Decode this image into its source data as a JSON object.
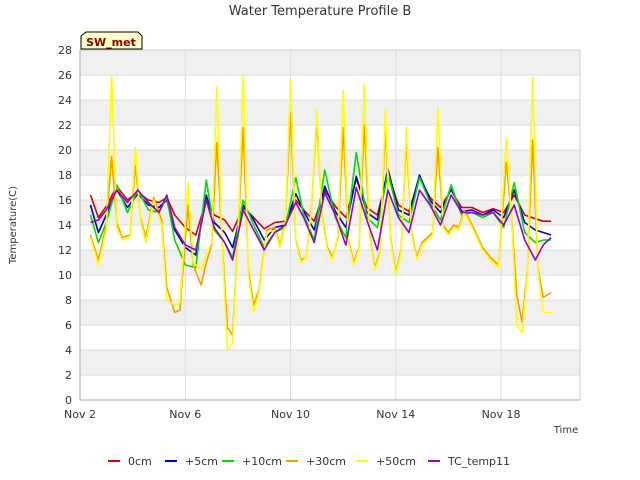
{
  "chart_data": {
    "type": "line",
    "title": "Water Temperature Profile B",
    "xlabel": "Time",
    "ylabel": "Temperature(C)",
    "badge": "SW_met",
    "x_ticks": [
      {
        "day": 2,
        "label": "Nov 2"
      },
      {
        "day": 6,
        "label": "Nov 6"
      },
      {
        "day": 10,
        "label": "Nov 10"
      },
      {
        "day": 14,
        "label": "Nov 14"
      },
      {
        "day": 18,
        "label": "Nov 18"
      }
    ],
    "xlim": [
      2,
      21
    ],
    "ylim": [
      0,
      28
    ],
    "y_ticks": [
      0,
      2,
      4,
      6,
      8,
      10,
      12,
      14,
      16,
      18,
      20,
      22,
      24,
      26,
      28
    ],
    "grid": true,
    "banded_background": true,
    "legend_position": "bottom",
    "series": [
      {
        "name": "0cm",
        "color": "#dd0000",
        "x": [
          2.4,
          2.7,
          3.0,
          3.4,
          3.8,
          4.2,
          4.6,
          5.0,
          5.3,
          5.6,
          6.0,
          6.4,
          6.8,
          7.1,
          7.5,
          7.8,
          8.2,
          8.6,
          9.0,
          9.4,
          9.8,
          10.2,
          10.5,
          10.9,
          11.3,
          11.7,
          12.1,
          12.5,
          12.9,
          13.3,
          13.7,
          14.1,
          14.5,
          14.9,
          15.3,
          15.7,
          16.1,
          16.5,
          16.9,
          17.3,
          17.7,
          18.1,
          18.5,
          18.9,
          19.3,
          19.6,
          19.9
        ],
        "y": [
          16.4,
          14.6,
          15.5,
          17.1,
          16.0,
          16.6,
          16.0,
          15.8,
          16.2,
          14.8,
          13.8,
          13.2,
          16.0,
          14.8,
          14.4,
          13.5,
          15.4,
          14.6,
          13.7,
          14.2,
          14.3,
          16.0,
          15.2,
          14.3,
          16.8,
          15.5,
          14.6,
          17.7,
          15.4,
          14.8,
          18.1,
          15.6,
          15.1,
          17.8,
          16.2,
          15.4,
          16.8,
          15.4,
          15.4,
          15.0,
          15.3,
          15.0,
          16.4,
          14.8,
          14.5,
          14.3,
          14.3
        ]
      },
      {
        "name": "+5cm",
        "color": "#0000cc",
        "x": [
          2.4,
          2.7,
          3.0,
          3.4,
          3.8,
          4.2,
          4.6,
          5.0,
          5.3,
          5.6,
          6.0,
          6.4,
          6.8,
          7.1,
          7.5,
          7.8,
          8.2,
          8.6,
          9.0,
          9.4,
          9.8,
          10.2,
          10.5,
          10.9,
          11.3,
          11.7,
          12.1,
          12.5,
          12.9,
          13.3,
          13.7,
          14.1,
          14.5,
          14.9,
          15.3,
          15.7,
          16.1,
          16.5,
          16.9,
          17.3,
          17.7,
          18.1,
          18.5,
          18.9,
          19.3,
          19.6,
          19.9
        ],
        "y": [
          15.6,
          13.4,
          14.8,
          16.8,
          15.4,
          16.5,
          15.6,
          15.4,
          16.0,
          13.6,
          12.2,
          11.6,
          16.4,
          14.2,
          13.4,
          12.2,
          15.6,
          14.4,
          12.8,
          13.8,
          14.0,
          16.5,
          15.1,
          13.6,
          17.1,
          15.1,
          13.8,
          17.9,
          15.0,
          14.4,
          18.5,
          15.2,
          14.8,
          18.0,
          16.0,
          15.0,
          16.9,
          15.1,
          15.2,
          14.8,
          15.2,
          14.6,
          16.8,
          14.2,
          13.6,
          13.4,
          13.2
        ]
      },
      {
        "name": "+10cm",
        "color": "#00dd00",
        "x": [
          2.4,
          2.7,
          3.0,
          3.4,
          3.8,
          4.2,
          4.6,
          5.0,
          5.3,
          5.6,
          6.0,
          6.4,
          6.8,
          7.1,
          7.5,
          7.8,
          8.2,
          8.6,
          9.0,
          9.4,
          9.8,
          10.2,
          10.5,
          10.9,
          11.3,
          11.7,
          12.1,
          12.5,
          12.9,
          13.3,
          13.7,
          14.1,
          14.5,
          14.9,
          15.3,
          15.7,
          16.1,
          16.5,
          16.9,
          17.3,
          17.7,
          18.1,
          18.5,
          18.9,
          19.3,
          19.6,
          19.9
        ],
        "y": [
          14.8,
          12.6,
          14.2,
          17.2,
          15.0,
          16.8,
          15.2,
          15.0,
          16.2,
          12.8,
          10.8,
          10.6,
          17.6,
          13.6,
          12.6,
          11.4,
          16.0,
          14.0,
          12.2,
          13.4,
          13.8,
          17.8,
          14.8,
          12.8,
          18.4,
          14.6,
          13.0,
          19.8,
          14.6,
          13.8,
          18.2,
          14.8,
          14.2,
          17.8,
          15.8,
          14.4,
          17.2,
          14.8,
          15.0,
          14.6,
          15.0,
          13.8,
          17.4,
          13.4,
          12.6,
          12.8,
          12.8
        ]
      },
      {
        "name": "+30cm",
        "color": "#ff9900",
        "x": [
          2.4,
          2.7,
          3.0,
          3.2,
          3.4,
          3.6,
          3.9,
          4.1,
          4.3,
          4.5,
          4.8,
          5.1,
          5.3,
          5.6,
          5.8,
          6.1,
          6.3,
          6.6,
          6.8,
          7.0,
          7.2,
          7.4,
          7.6,
          7.8,
          8.0,
          8.2,
          8.4,
          8.6,
          8.8,
          9.1,
          9.4,
          9.6,
          9.8,
          10.0,
          10.2,
          10.4,
          10.6,
          10.8,
          11.0,
          11.2,
          11.4,
          11.6,
          11.8,
          12.0,
          12.2,
          12.4,
          12.6,
          12.8,
          13.0,
          13.2,
          13.4,
          13.6,
          13.8,
          14.0,
          14.2,
          14.4,
          14.6,
          14.8,
          15.0,
          15.2,
          15.4,
          15.6,
          15.8,
          16.0,
          16.2,
          16.4,
          16.6,
          16.8,
          17.0,
          17.3,
          17.6,
          17.9,
          18.2,
          18.4,
          18.6,
          18.8,
          19.0,
          19.2,
          19.4,
          19.6,
          19.9
        ],
        "y": [
          13.2,
          11.2,
          14.0,
          19.5,
          14.2,
          13.0,
          13.2,
          18.8,
          14.6,
          13.0,
          16.2,
          14.4,
          9.0,
          7.0,
          7.2,
          15.6,
          10.8,
          9.2,
          11.0,
          12.4,
          20.6,
          12.6,
          5.8,
          5.2,
          13.0,
          21.8,
          10.4,
          7.6,
          8.8,
          13.6,
          13.8,
          12.4,
          14.2,
          23.0,
          12.8,
          11.2,
          11.4,
          15.6,
          22.4,
          14.8,
          12.2,
          11.4,
          13.0,
          21.8,
          12.8,
          11.0,
          12.2,
          22.0,
          13.4,
          10.6,
          11.8,
          21.8,
          13.0,
          10.2,
          12.0,
          20.8,
          13.4,
          11.4,
          12.6,
          13.0,
          13.4,
          20.2,
          14.0,
          13.4,
          14.0,
          13.8,
          15.2,
          14.4,
          13.6,
          12.2,
          11.4,
          10.8,
          19.0,
          14.6,
          8.4,
          6.2,
          10.4,
          20.8,
          10.6,
          8.2,
          8.6
        ]
      },
      {
        "name": "+50cm",
        "color": "#ffff00",
        "x": [
          2.4,
          2.7,
          3.0,
          3.2,
          3.4,
          3.6,
          3.9,
          4.1,
          4.3,
          4.5,
          4.8,
          5.1,
          5.3,
          5.6,
          5.8,
          6.1,
          6.3,
          6.6,
          6.8,
          7.0,
          7.2,
          7.4,
          7.6,
          7.8,
          8.0,
          8.2,
          8.4,
          8.6,
          8.8,
          9.1,
          9.4,
          9.6,
          9.8,
          10.0,
          10.2,
          10.4,
          10.6,
          10.8,
          11.0,
          11.2,
          11.4,
          11.6,
          11.8,
          12.0,
          12.2,
          12.4,
          12.6,
          12.8,
          13.0,
          13.2,
          13.4,
          13.6,
          13.8,
          14.0,
          14.2,
          14.4,
          14.6,
          14.8,
          15.0,
          15.2,
          15.4,
          15.6,
          15.8,
          16.0,
          16.2,
          16.4,
          16.6,
          16.8,
          17.0,
          17.3,
          17.6,
          17.9,
          18.2,
          18.4,
          18.6,
          18.8,
          19.0,
          19.2,
          19.4,
          19.6,
          19.9
        ],
        "y": [
          13.0,
          10.8,
          13.6,
          26.0,
          13.8,
          12.8,
          13.0,
          20.2,
          14.4,
          12.6,
          16.0,
          14.0,
          8.0,
          7.6,
          7.8,
          17.4,
          11.0,
          10.4,
          11.6,
          12.6,
          25.0,
          12.4,
          4.0,
          4.6,
          12.8,
          26.0,
          10.0,
          7.0,
          8.6,
          13.4,
          13.6,
          12.2,
          14.0,
          25.6,
          12.6,
          11.0,
          11.4,
          15.4,
          23.2,
          14.6,
          12.0,
          11.2,
          13.2,
          24.8,
          12.6,
          10.8,
          12.0,
          25.2,
          13.2,
          10.4,
          11.6,
          23.2,
          12.8,
          10.0,
          11.8,
          21.8,
          13.2,
          11.2,
          12.4,
          12.8,
          13.2,
          23.4,
          13.8,
          13.2,
          13.8,
          13.6,
          15.0,
          14.2,
          13.4,
          12.0,
          11.2,
          10.6,
          21.0,
          14.4,
          6.0,
          5.4,
          10.2,
          25.8,
          10.4,
          7.0,
          7.0
        ]
      },
      {
        "name": "TC_temp11",
        "color": "#9900cc",
        "x": [
          2.4,
          2.7,
          3.0,
          3.4,
          3.8,
          4.2,
          4.6,
          5.0,
          5.3,
          5.6,
          6.0,
          6.4,
          6.8,
          7.1,
          7.5,
          7.8,
          8.2,
          8.6,
          9.0,
          9.4,
          9.8,
          10.2,
          10.5,
          10.9,
          11.3,
          11.7,
          12.1,
          12.5,
          12.9,
          13.3,
          13.7,
          14.1,
          14.5,
          14.9,
          15.3,
          15.7,
          16.1,
          16.5,
          16.9,
          17.3,
          17.7,
          18.1,
          18.5,
          18.9,
          19.3,
          19.6,
          19.9
        ],
        "y": [
          14.2,
          14.4,
          15.2,
          16.8,
          15.8,
          16.8,
          15.8,
          15.0,
          16.4,
          13.8,
          12.4,
          12.0,
          16.0,
          13.8,
          12.6,
          11.2,
          15.2,
          13.6,
          12.0,
          13.4,
          14.0,
          15.8,
          14.6,
          12.6,
          16.6,
          14.8,
          12.4,
          17.0,
          14.4,
          12.0,
          16.8,
          14.6,
          13.4,
          16.8,
          15.6,
          14.0,
          16.4,
          15.0,
          15.0,
          14.8,
          15.0,
          14.0,
          15.6,
          12.8,
          11.2,
          12.4,
          13.0
        ]
      }
    ]
  }
}
